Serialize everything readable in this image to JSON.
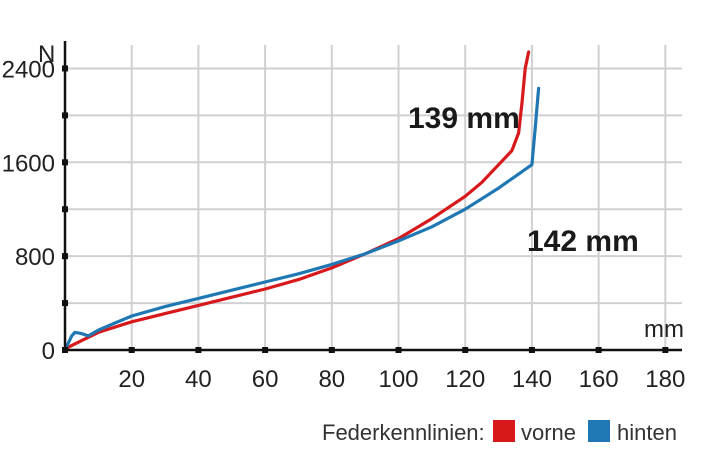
{
  "chart_data": {
    "type": "line",
    "title": "",
    "xlabel": "mm",
    "ylabel": "N",
    "xlim": [
      0,
      185
    ],
    "ylim": [
      0,
      2600
    ],
    "xticks": [
      20,
      40,
      60,
      80,
      100,
      120,
      140,
      160,
      180
    ],
    "yticks": [
      0,
      800,
      1600,
      2400
    ],
    "grid": true,
    "legend_title": "Federkennlinien:",
    "legend_position": "bottom-right",
    "series": [
      {
        "name": "vorne",
        "color": "#d7191c",
        "x": [
          0,
          5,
          10,
          20,
          30,
          40,
          50,
          60,
          70,
          80,
          90,
          100,
          110,
          120,
          125,
          130,
          134,
          136,
          137,
          138,
          139
        ],
        "y": [
          10,
          80,
          150,
          240,
          310,
          380,
          450,
          520,
          600,
          700,
          820,
          950,
          1120,
          1310,
          1430,
          1580,
          1700,
          1850,
          2100,
          2400,
          2540
        ]
      },
      {
        "name": "hinten",
        "color": "#1f78b4",
        "x": [
          0,
          1,
          2,
          3,
          5,
          7,
          10,
          15,
          20,
          30,
          40,
          50,
          60,
          70,
          80,
          90,
          100,
          110,
          120,
          130,
          135,
          140,
          141,
          142
        ],
        "y": [
          0,
          60,
          120,
          150,
          140,
          120,
          170,
          230,
          290,
          370,
          440,
          510,
          580,
          650,
          730,
          820,
          930,
          1050,
          1200,
          1380,
          1480,
          1580,
          1900,
          2230
        ]
      }
    ],
    "annotations": [
      {
        "text": "139 mm"
      },
      {
        "text": "142 mm"
      }
    ]
  }
}
